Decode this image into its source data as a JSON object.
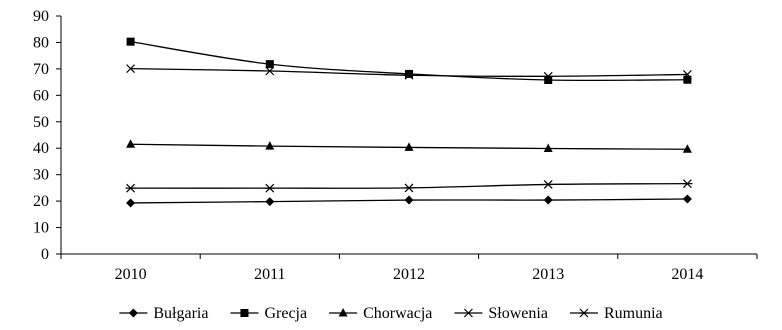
{
  "chart_data": {
    "type": "line",
    "title": "",
    "xlabel": "",
    "ylabel": "",
    "categories": [
      "2010",
      "2011",
      "2012",
      "2013",
      "2014"
    ],
    "ylim": [
      0,
      90
    ],
    "yticks": [
      0,
      10,
      20,
      30,
      40,
      50,
      60,
      70,
      80,
      90
    ],
    "grid": false,
    "legend_position": "bottom",
    "series": [
      {
        "name": "Bułgaria",
        "marker": "diamond",
        "values": [
          19.3,
          19.8,
          20.4,
          20.4,
          20.8
        ]
      },
      {
        "name": "Grecja",
        "marker": "square",
        "values": [
          80.3,
          71.8,
          68.1,
          65.8,
          65.9
        ]
      },
      {
        "name": "Chorwacja",
        "marker": "triangle",
        "values": [
          41.5,
          40.8,
          40.3,
          39.9,
          39.6
        ]
      },
      {
        "name": "Słowenia",
        "marker": "x",
        "values": [
          70.1,
          69.2,
          67.6,
          67.2,
          67.9
        ]
      },
      {
        "name": "Rumunia",
        "marker": "asterisk",
        "values": [
          24.9,
          24.9,
          25.0,
          26.3,
          26.6
        ]
      }
    ]
  }
}
